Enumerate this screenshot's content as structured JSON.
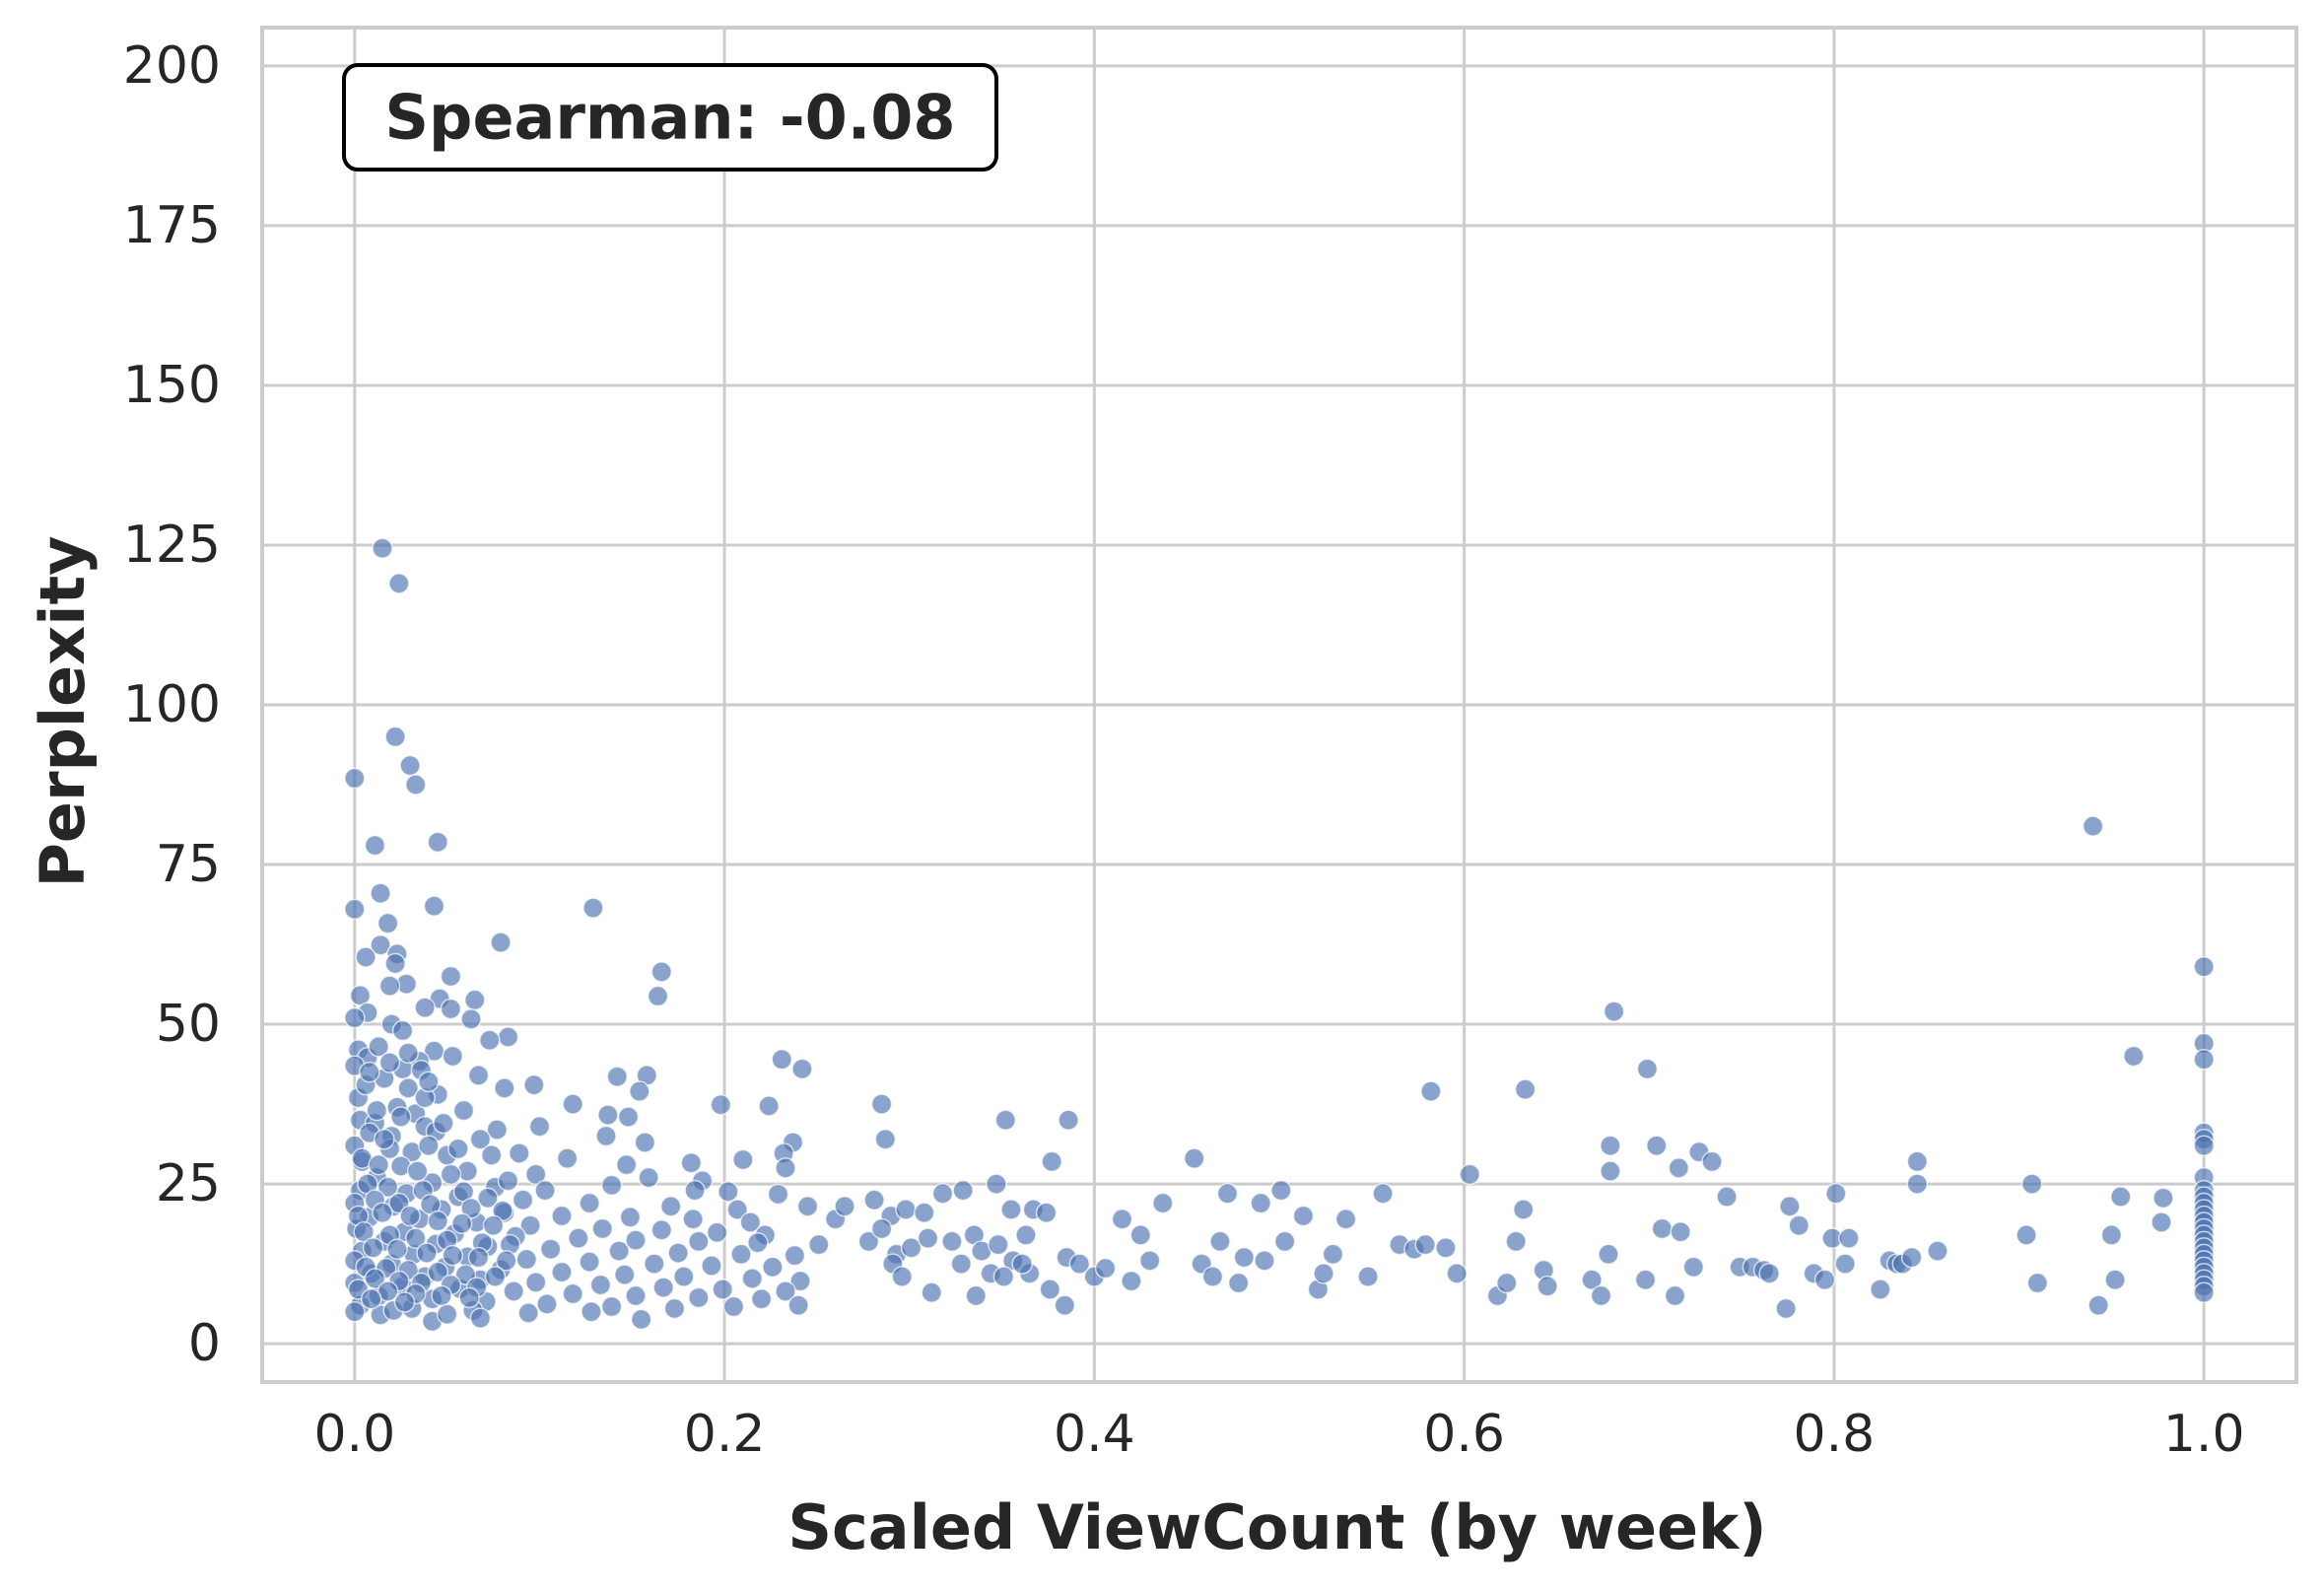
{
  "chart_data": {
    "type": "scatter",
    "title": "",
    "xlabel": "Scaled ViewCount (by week)",
    "ylabel": "Perplexity",
    "xlim": [
      -0.05,
      1.05
    ],
    "ylim": [
      -6,
      206
    ],
    "xticks": [
      0.0,
      0.2,
      0.4,
      0.6,
      0.8,
      1.0
    ],
    "xtick_labels": [
      "0.0",
      "0.2",
      "0.4",
      "0.6",
      "0.8",
      "1.0"
    ],
    "yticks": [
      0,
      25,
      50,
      75,
      100,
      125,
      150,
      175,
      200
    ],
    "ytick_labels": [
      "0",
      "25",
      "50",
      "75",
      "100",
      "125",
      "150",
      "175",
      "200"
    ],
    "grid": true,
    "annotation": "Spearman: -0.08",
    "marker_color": "#4c72b0",
    "points": [
      [
        0.0,
        88.5
      ],
      [
        0.0,
        68.0
      ],
      [
        0.015,
        124.5
      ],
      [
        0.024,
        119.0
      ],
      [
        0.022,
        95.0
      ],
      [
        0.03,
        90.5
      ],
      [
        0.033,
        87.5
      ],
      [
        0.011,
        78.0
      ],
      [
        0.045,
        78.5
      ],
      [
        0.014,
        70.5
      ],
      [
        0.043,
        68.5
      ],
      [
        0.129,
        68.2
      ],
      [
        0.018,
        65.8
      ],
      [
        0.079,
        62.8
      ],
      [
        0.014,
        62.4
      ],
      [
        0.023,
        61.0
      ],
      [
        0.006,
        60.5
      ],
      [
        0.022,
        59.5
      ],
      [
        0.166,
        58.2
      ],
      [
        0.052,
        57.5
      ],
      [
        0.028,
        56.3
      ],
      [
        0.019,
        56.0
      ],
      [
        0.164,
        54.4
      ],
      [
        0.003,
        54.5
      ],
      [
        0.046,
        54.0
      ],
      [
        0.065,
        53.8
      ],
      [
        0.038,
        52.6
      ],
      [
        0.052,
        52.4
      ],
      [
        0.007,
        51.8
      ],
      [
        0.0,
        51.0
      ],
      [
        0.063,
        50.8
      ],
      [
        0.02,
        50.0
      ],
      [
        0.026,
        49.0
      ],
      [
        0.083,
        48.0
      ],
      [
        0.073,
        47.5
      ],
      [
        0.002,
        46.0
      ],
      [
        0.043,
        45.8
      ],
      [
        0.053,
        45.0
      ],
      [
        0.007,
        44.8
      ],
      [
        0.035,
        44.2
      ],
      [
        0.0,
        43.5
      ],
      [
        0.026,
        43.0
      ],
      [
        0.067,
        42.0
      ],
      [
        0.158,
        42.0
      ],
      [
        0.142,
        41.8
      ],
      [
        0.081,
        40.0
      ],
      [
        0.097,
        40.5
      ],
      [
        0.154,
        39.5
      ],
      [
        0.045,
        39.0
      ],
      [
        0.002,
        38.5
      ],
      [
        0.118,
        37.5
      ],
      [
        0.198,
        37.4
      ],
      [
        0.224,
        37.2
      ],
      [
        0.023,
        37.0
      ],
      [
        0.033,
        36.0
      ],
      [
        0.059,
        36.5
      ],
      [
        0.137,
        35.8
      ],
      [
        0.148,
        35.5
      ],
      [
        0.003,
        35.0
      ],
      [
        0.011,
        34.5
      ],
      [
        0.038,
        34.0
      ],
      [
        0.077,
        33.5
      ],
      [
        0.1,
        34.0
      ],
      [
        0.044,
        33.2
      ],
      [
        0.02,
        32.5
      ],
      [
        0.068,
        32.0
      ],
      [
        0.136,
        32.5
      ],
      [
        0.157,
        31.5
      ],
      [
        0.21,
        28.8
      ],
      [
        0.237,
        31.5
      ],
      [
        0.232,
        29.8
      ],
      [
        0.0,
        31.0
      ],
      [
        0.019,
        30.5
      ],
      [
        0.031,
        30.0
      ],
      [
        0.05,
        29.5
      ],
      [
        0.089,
        29.8
      ],
      [
        0.115,
        29.0
      ],
      [
        0.147,
        28.0
      ],
      [
        0.182,
        28.3
      ],
      [
        0.233,
        27.5
      ],
      [
        0.004,
        28.5
      ],
      [
        0.025,
        27.8
      ],
      [
        0.061,
        27.0
      ],
      [
        0.098,
        26.5
      ],
      [
        0.159,
        26.0
      ],
      [
        0.188,
        25.5
      ],
      [
        0.012,
        26.0
      ],
      [
        0.042,
        25.2
      ],
      [
        0.076,
        24.5
      ],
      [
        0.103,
        24.0
      ],
      [
        0.139,
        24.8
      ],
      [
        0.184,
        24.0
      ],
      [
        0.202,
        23.8
      ],
      [
        0.229,
        23.4
      ],
      [
        0.003,
        24.0
      ],
      [
        0.028,
        23.5
      ],
      [
        0.056,
        23.0
      ],
      [
        0.091,
        22.5
      ],
      [
        0.127,
        22.0
      ],
      [
        0.171,
        21.5
      ],
      [
        0.207,
        21.0
      ],
      [
        0.245,
        21.5
      ],
      [
        0.0,
        22.0
      ],
      [
        0.021,
        21.5
      ],
      [
        0.047,
        21.0
      ],
      [
        0.081,
        20.5
      ],
      [
        0.112,
        20.0
      ],
      [
        0.149,
        19.8
      ],
      [
        0.183,
        19.5
      ],
      [
        0.214,
        19.0
      ],
      [
        0.26,
        19.5
      ],
      [
        0.008,
        19.8
      ],
      [
        0.035,
        19.5
      ],
      [
        0.066,
        19.0
      ],
      [
        0.095,
        18.5
      ],
      [
        0.134,
        18.0
      ],
      [
        0.166,
        17.8
      ],
      [
        0.196,
        17.4
      ],
      [
        0.222,
        17.0
      ],
      [
        0.001,
        18.0
      ],
      [
        0.027,
        17.5
      ],
      [
        0.054,
        17.2
      ],
      [
        0.087,
        16.8
      ],
      [
        0.121,
        16.5
      ],
      [
        0.152,
        16.2
      ],
      [
        0.186,
        16.0
      ],
      [
        0.218,
        15.8
      ],
      [
        0.251,
        15.5
      ],
      [
        0.016,
        16.0
      ],
      [
        0.044,
        15.6
      ],
      [
        0.072,
        15.2
      ],
      [
        0.106,
        14.8
      ],
      [
        0.143,
        14.5
      ],
      [
        0.175,
        14.2
      ],
      [
        0.209,
        14.0
      ],
      [
        0.238,
        13.8
      ],
      [
        0.004,
        14.5
      ],
      [
        0.032,
        14.0
      ],
      [
        0.061,
        13.6
      ],
      [
        0.093,
        13.2
      ],
      [
        0.127,
        12.8
      ],
      [
        0.162,
        12.5
      ],
      [
        0.193,
        12.2
      ],
      [
        0.226,
        12.0
      ],
      [
        0.0,
        13.0
      ],
      [
        0.02,
        12.5
      ],
      [
        0.049,
        12.0
      ],
      [
        0.079,
        11.6
      ],
      [
        0.112,
        11.2
      ],
      [
        0.146,
        10.8
      ],
      [
        0.178,
        10.5
      ],
      [
        0.215,
        10.2
      ],
      [
        0.241,
        9.8
      ],
      [
        0.009,
        11.0
      ],
      [
        0.038,
        10.5
      ],
      [
        0.068,
        10.0
      ],
      [
        0.098,
        9.6
      ],
      [
        0.133,
        9.2
      ],
      [
        0.167,
        8.8
      ],
      [
        0.199,
        8.5
      ],
      [
        0.233,
        8.2
      ],
      [
        0.0,
        9.5
      ],
      [
        0.026,
        9.0
      ],
      [
        0.057,
        8.6
      ],
      [
        0.086,
        8.2
      ],
      [
        0.118,
        7.8
      ],
      [
        0.152,
        7.5
      ],
      [
        0.186,
        7.2
      ],
      [
        0.22,
        7.0
      ],
      [
        0.013,
        7.5
      ],
      [
        0.042,
        7.0
      ],
      [
        0.071,
        6.6
      ],
      [
        0.104,
        6.2
      ],
      [
        0.139,
        5.8
      ],
      [
        0.173,
        5.5
      ],
      [
        0.205,
        5.8
      ],
      [
        0.24,
        6.0
      ],
      [
        0.003,
        6.0
      ],
      [
        0.031,
        5.5
      ],
      [
        0.064,
        5.2
      ],
      [
        0.094,
        4.8
      ],
      [
        0.128,
        5.0
      ],
      [
        0.155,
        3.8
      ],
      [
        0.042,
        3.5
      ],
      [
        0.068,
        4.0
      ],
      [
        0.014,
        4.5
      ],
      [
        0.0,
        5.0
      ],
      [
        0.021,
        5.2
      ],
      [
        0.05,
        4.6
      ],
      [
        0.006,
        40.5
      ],
      [
        0.016,
        41.5
      ],
      [
        0.029,
        40.0
      ],
      [
        0.038,
        38.5
      ],
      [
        0.012,
        36.5
      ],
      [
        0.025,
        35.5
      ],
      [
        0.048,
        34.5
      ],
      [
        0.008,
        33.0
      ],
      [
        0.016,
        32.0
      ],
      [
        0.04,
        31.0
      ],
      [
        0.056,
        30.5
      ],
      [
        0.074,
        29.5
      ],
      [
        0.004,
        29.0
      ],
      [
        0.013,
        28.0
      ],
      [
        0.034,
        27.0
      ],
      [
        0.052,
        26.5
      ],
      [
        0.083,
        25.5
      ],
      [
        0.007,
        25.0
      ],
      [
        0.018,
        24.5
      ],
      [
        0.037,
        24.0
      ],
      [
        0.059,
        23.8
      ],
      [
        0.072,
        22.8
      ],
      [
        0.011,
        22.5
      ],
      [
        0.024,
        22.0
      ],
      [
        0.041,
        21.8
      ],
      [
        0.063,
        21.2
      ],
      [
        0.08,
        20.8
      ],
      [
        0.002,
        20.0
      ],
      [
        0.015,
        20.5
      ],
      [
        0.03,
        20.0
      ],
      [
        0.045,
        19.2
      ],
      [
        0.058,
        18.8
      ],
      [
        0.075,
        18.5
      ],
      [
        0.005,
        17.5
      ],
      [
        0.019,
        17.0
      ],
      [
        0.033,
        16.5
      ],
      [
        0.05,
        16.2
      ],
      [
        0.069,
        15.8
      ],
      [
        0.084,
        15.5
      ],
      [
        0.01,
        15.0
      ],
      [
        0.023,
        14.8
      ],
      [
        0.039,
        14.2
      ],
      [
        0.053,
        13.8
      ],
      [
        0.067,
        13.5
      ],
      [
        0.082,
        13.0
      ],
      [
        0.006,
        12.0
      ],
      [
        0.017,
        11.8
      ],
      [
        0.029,
        11.5
      ],
      [
        0.045,
        11.2
      ],
      [
        0.06,
        10.8
      ],
      [
        0.076,
        10.5
      ],
      [
        0.011,
        10.2
      ],
      [
        0.024,
        9.8
      ],
      [
        0.036,
        9.5
      ],
      [
        0.052,
        9.2
      ],
      [
        0.066,
        8.8
      ],
      [
        0.002,
        8.5
      ],
      [
        0.018,
        8.2
      ],
      [
        0.033,
        7.8
      ],
      [
        0.047,
        7.5
      ],
      [
        0.062,
        7.2
      ],
      [
        0.009,
        7.0
      ],
      [
        0.027,
        6.5
      ],
      [
        0.013,
        46.5
      ],
      [
        0.029,
        45.5
      ],
      [
        0.019,
        44.0
      ],
      [
        0.036,
        42.8
      ],
      [
        0.008,
        42.5
      ],
      [
        0.04,
        41.0
      ],
      [
        0.285,
        37.5
      ],
      [
        0.287,
        32.0
      ],
      [
        0.352,
        35.0
      ],
      [
        0.386,
        35.0
      ],
      [
        0.231,
        44.5
      ],
      [
        0.242,
        43.0
      ],
      [
        0.265,
        21.5
      ],
      [
        0.281,
        22.5
      ],
      [
        0.29,
        20.0
      ],
      [
        0.298,
        21.0
      ],
      [
        0.308,
        20.5
      ],
      [
        0.318,
        23.5
      ],
      [
        0.329,
        24.0
      ],
      [
        0.335,
        17.0
      ],
      [
        0.347,
        25.0
      ],
      [
        0.355,
        21.0
      ],
      [
        0.363,
        17.0
      ],
      [
        0.367,
        21.0
      ],
      [
        0.374,
        20.5
      ],
      [
        0.278,
        16.0
      ],
      [
        0.285,
        18.0
      ],
      [
        0.293,
        14.0
      ],
      [
        0.301,
        15.0
      ],
      [
        0.31,
        16.5
      ],
      [
        0.323,
        16.0
      ],
      [
        0.339,
        14.5
      ],
      [
        0.348,
        15.5
      ],
      [
        0.356,
        13.0
      ],
      [
        0.365,
        11.0
      ],
      [
        0.376,
        8.5
      ],
      [
        0.384,
        6.0
      ],
      [
        0.291,
        12.5
      ],
      [
        0.296,
        10.5
      ],
      [
        0.312,
        8.0
      ],
      [
        0.328,
        12.5
      ],
      [
        0.336,
        7.5
      ],
      [
        0.344,
        11.0
      ],
      [
        0.351,
        10.5
      ],
      [
        0.361,
        12.5
      ],
      [
        0.377,
        28.5
      ],
      [
        0.385,
        13.5
      ],
      [
        0.392,
        12.5
      ],
      [
        0.4,
        10.5
      ],
      [
        0.406,
        11.8
      ],
      [
        0.415,
        19.5
      ],
      [
        0.42,
        9.8
      ],
      [
        0.425,
        17.0
      ],
      [
        0.43,
        13.0
      ],
      [
        0.437,
        22.0
      ],
      [
        0.454,
        29.0
      ],
      [
        0.458,
        12.5
      ],
      [
        0.464,
        10.5
      ],
      [
        0.468,
        16.0
      ],
      [
        0.472,
        23.5
      ],
      [
        0.478,
        9.5
      ],
      [
        0.481,
        13.5
      ],
      [
        0.49,
        22.0
      ],
      [
        0.492,
        13.0
      ],
      [
        0.501,
        24.0
      ],
      [
        0.503,
        16.0
      ],
      [
        0.513,
        20.0
      ],
      [
        0.521,
        8.5
      ],
      [
        0.524,
        11.0
      ],
      [
        0.529,
        14.0
      ],
      [
        0.536,
        19.5
      ],
      [
        0.548,
        10.5
      ],
      [
        0.556,
        23.5
      ],
      [
        0.565,
        15.5
      ],
      [
        0.573,
        14.8
      ],
      [
        0.579,
        15.5
      ],
      [
        0.582,
        39.5
      ],
      [
        0.59,
        15.0
      ],
      [
        0.596,
        11.0
      ],
      [
        0.603,
        26.5
      ],
      [
        0.618,
        7.5
      ],
      [
        0.623,
        9.5
      ],
      [
        0.628,
        16.0
      ],
      [
        0.632,
        21.0
      ],
      [
        0.633,
        39.8
      ],
      [
        0.643,
        11.5
      ],
      [
        0.645,
        9.0
      ],
      [
        0.669,
        10.0
      ],
      [
        0.674,
        7.5
      ],
      [
        0.678,
        14.0
      ],
      [
        0.679,
        27.0
      ],
      [
        0.679,
        31.0
      ],
      [
        0.681,
        52.0
      ],
      [
        0.698,
        10.0
      ],
      [
        0.699,
        43.0
      ],
      [
        0.704,
        31.0
      ],
      [
        0.707,
        18.0
      ],
      [
        0.714,
        7.5
      ],
      [
        0.717,
        17.5
      ],
      [
        0.716,
        27.5
      ],
      [
        0.724,
        12.0
      ],
      [
        0.727,
        30.0
      ],
      [
        0.734,
        28.5
      ],
      [
        0.742,
        23.0
      ],
      [
        0.749,
        12.0
      ],
      [
        0.756,
        12.0
      ],
      [
        0.762,
        11.5
      ],
      [
        0.765,
        11.0
      ],
      [
        0.774,
        5.5
      ],
      [
        0.776,
        21.5
      ],
      [
        0.781,
        18.5
      ],
      [
        0.789,
        11.0
      ],
      [
        0.795,
        10.0
      ],
      [
        0.799,
        16.5
      ],
      [
        0.801,
        23.5
      ],
      [
        0.806,
        12.5
      ],
      [
        0.808,
        16.5
      ],
      [
        0.825,
        8.5
      ],
      [
        0.83,
        13.0
      ],
      [
        0.834,
        12.5
      ],
      [
        0.837,
        12.5
      ],
      [
        0.842,
        13.5
      ],
      [
        0.845,
        28.5
      ],
      [
        0.845,
        25.0
      ],
      [
        0.856,
        14.5
      ],
      [
        0.904,
        17.0
      ],
      [
        0.907,
        25.0
      ],
      [
        0.91,
        9.5
      ],
      [
        0.94,
        81.0
      ],
      [
        0.943,
        6.0
      ],
      [
        0.95,
        17.0
      ],
      [
        0.952,
        10.0
      ],
      [
        0.955,
        23.0
      ],
      [
        0.962,
        45.0
      ],
      [
        0.977,
        19.0
      ],
      [
        0.978,
        22.8
      ],
      [
        1.0,
        59.0
      ],
      [
        1.0,
        47.0
      ],
      [
        1.0,
        44.5
      ],
      [
        1.0,
        33.0
      ],
      [
        1.0,
        32.0
      ],
      [
        1.0,
        31.0
      ],
      [
        1.0,
        26.0
      ],
      [
        1.0,
        24.0
      ],
      [
        1.0,
        23.0
      ],
      [
        1.0,
        22.0
      ],
      [
        1.0,
        21.0
      ],
      [
        1.0,
        20.0
      ],
      [
        1.0,
        19.0
      ],
      [
        1.0,
        18.0
      ],
      [
        1.0,
        17.0
      ],
      [
        1.0,
        16.0
      ],
      [
        1.0,
        15.0
      ],
      [
        1.0,
        14.0
      ],
      [
        1.0,
        13.0
      ],
      [
        1.0,
        12.0
      ],
      [
        1.0,
        11.0
      ],
      [
        1.0,
        10.0
      ],
      [
        1.0,
        9.0
      ],
      [
        1.0,
        8.0
      ]
    ]
  }
}
